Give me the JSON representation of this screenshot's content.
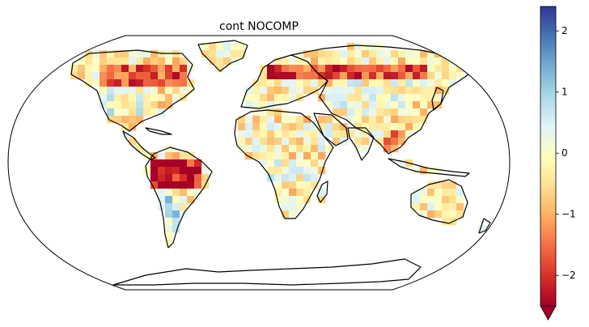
{
  "figure": {
    "title": "cont NOCOMP"
  },
  "colorbar": {
    "colormap": "RdYlBu",
    "vmin": -2.5,
    "vmax": 2.4,
    "extend": "min",
    "ticks": [
      {
        "value": 2,
        "label": "2"
      },
      {
        "value": 1,
        "label": "1"
      },
      {
        "value": 0,
        "label": "0"
      },
      {
        "value": -1,
        "label": "−1"
      },
      {
        "value": -2,
        "label": "−2"
      }
    ],
    "colors": [
      "#a50026",
      "#d73027",
      "#f46d43",
      "#fdae61",
      "#fee090",
      "#ffffbf",
      "#e0f3f8",
      "#abd9e9",
      "#74add1",
      "#4575b4",
      "#313695"
    ]
  },
  "map": {
    "projection": "Robinson",
    "ocean_color": "#ffffff",
    "coastline_color": "#000000"
  }
}
